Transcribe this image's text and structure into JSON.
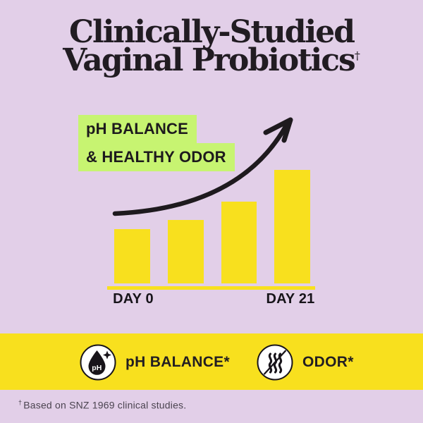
{
  "title": {
    "line1": "Clinically-Studied",
    "line2": "Vaginal Probiotics",
    "dagger": "†"
  },
  "highlight": {
    "line1": "pH BALANCE",
    "line2": "& HEALTHY ODOR"
  },
  "chart_data": {
    "type": "bar",
    "categories": [
      "DAY 0",
      "",
      "",
      "DAY 21"
    ],
    "values": [
      48,
      56,
      72,
      100
    ],
    "ylim": [
      0,
      100
    ],
    "title": "",
    "xlabel": "",
    "ylabel": "",
    "grid": false,
    "legend": false,
    "bar_color": "#F8E01E",
    "visible_tick_labels": [
      "DAY 0",
      "DAY 21"
    ],
    "annotation": "hand-drawn upward trend arrow over bars",
    "note": "no numeric axis shown; values are relative bar heights as % of tallest bar"
  },
  "badges": [
    {
      "icon": "ph-droplet-icon",
      "label": "pH BALANCE*"
    },
    {
      "icon": "no-odor-icon",
      "label": "ODOR*"
    }
  ],
  "footnote": {
    "dagger": "†",
    "text": "Based on SNZ 1969 clinical studies."
  },
  "colors": {
    "background": "#E2CFE8",
    "yellow": "#F8E01E",
    "highlight_green": "#C7F471",
    "title_text": "#211C22",
    "footnote_text": "#4B4450",
    "arrow": "#1E1A1E"
  }
}
